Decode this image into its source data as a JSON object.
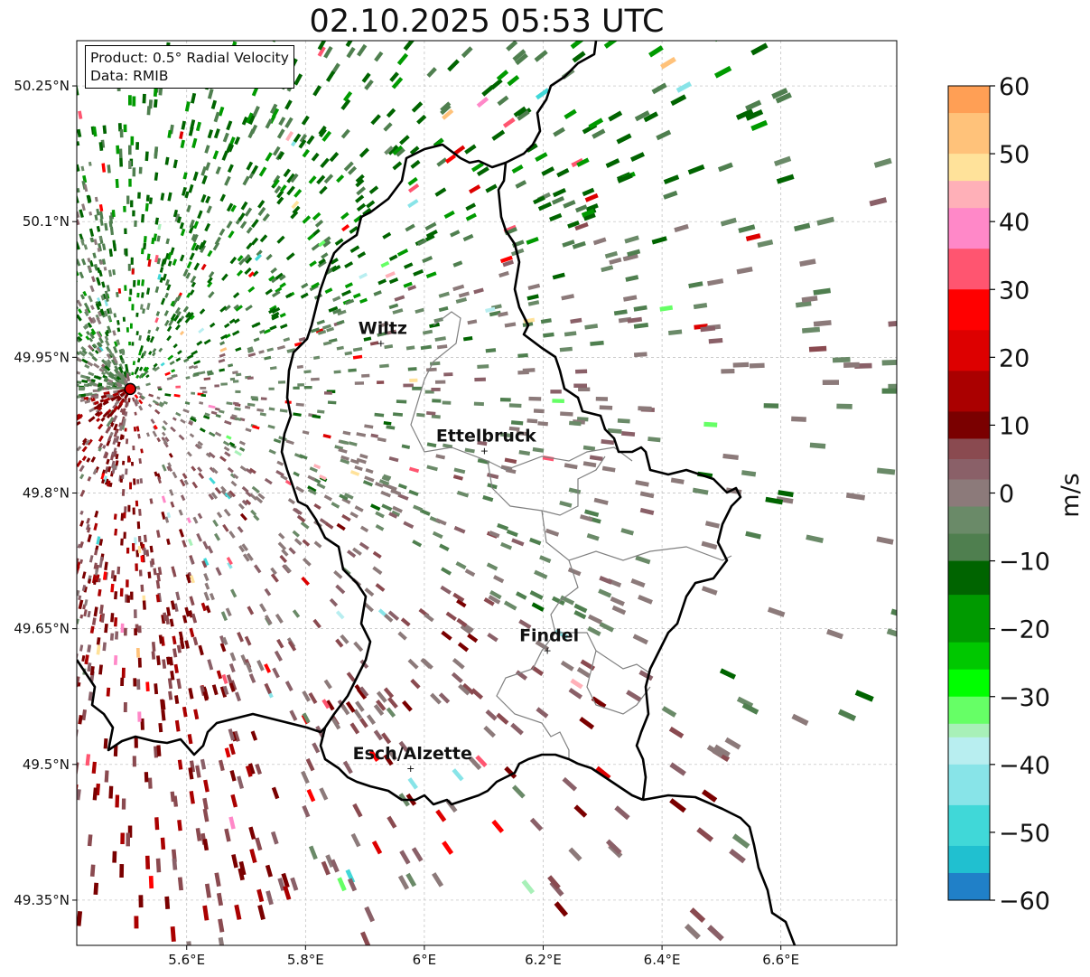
{
  "title": "02.10.2025 05:53 UTC",
  "info": {
    "product": "Product: 0.5° Radial Velocity",
    "source": "Data: RMIB"
  },
  "map": {
    "extent": {
      "lon_min": 5.415,
      "lon_max": 6.795,
      "lat_min": 49.3,
      "lat_max": 50.3
    },
    "x_ticks": [
      {
        "lon": 5.6,
        "label": "5.6°E"
      },
      {
        "lon": 5.8,
        "label": "5.8°E"
      },
      {
        "lon": 6.0,
        "label": "6°E"
      },
      {
        "lon": 6.2,
        "label": "6.2°E"
      },
      {
        "lon": 6.4,
        "label": "6.4°E"
      },
      {
        "lon": 6.6,
        "label": "6.6°E"
      }
    ],
    "y_ticks": [
      {
        "lat": 50.25,
        "label": "50.25°N"
      },
      {
        "lat": 50.1,
        "label": "50.1°N"
      },
      {
        "lat": 49.95,
        "label": "49.95°N"
      },
      {
        "lat": 49.8,
        "label": "49.8°N"
      },
      {
        "lat": 49.65,
        "label": "49.65°N"
      },
      {
        "lat": 49.5,
        "label": "49.5°N"
      },
      {
        "lat": 49.35,
        "label": "49.35°N"
      }
    ],
    "radar": {
      "lon": 5.505,
      "lat": 49.915
    },
    "cities": [
      {
        "name": "Wiltz",
        "lon": 5.93,
        "lat": 49.966
      },
      {
        "name": "Ettelbruck",
        "lon": 6.104,
        "lat": 49.847
      },
      {
        "name": "Findel",
        "lon": 6.21,
        "lat": 49.626
      },
      {
        "name": "Esch/Alzette",
        "lon": 5.98,
        "lat": 49.496
      }
    ],
    "colors": {
      "border": "#000000",
      "canton": "#808080",
      "radar_marker": "#e00000"
    }
  },
  "colorbar": {
    "unit": "m/s",
    "min": -60,
    "max": 60,
    "ticks": [
      {
        "value": 60,
        "label": "60"
      },
      {
        "value": 50,
        "label": "50"
      },
      {
        "value": 40,
        "label": "40"
      },
      {
        "value": 30,
        "label": "30"
      },
      {
        "value": 20,
        "label": "20"
      },
      {
        "value": 10,
        "label": "10"
      },
      {
        "value": 0,
        "label": "0"
      },
      {
        "value": -10,
        "label": "−10"
      },
      {
        "value": -20,
        "label": "−20"
      },
      {
        "value": -30,
        "label": "−30"
      },
      {
        "value": -40,
        "label": "−40"
      },
      {
        "value": -50,
        "label": "−50"
      },
      {
        "value": -60,
        "label": "−60"
      }
    ],
    "bands": [
      {
        "from": 56,
        "to": 60,
        "color": "#ff9f55"
      },
      {
        "from": 50,
        "to": 56,
        "color": "#ffc27a"
      },
      {
        "from": 46,
        "to": 50,
        "color": "#ffe29a"
      },
      {
        "from": 42,
        "to": 46,
        "color": "#ffb0b8"
      },
      {
        "from": 36,
        "to": 42,
        "color": "#ff88c8"
      },
      {
        "from": 30,
        "to": 36,
        "color": "#ff5570"
      },
      {
        "from": 24,
        "to": 30,
        "color": "#ff0000"
      },
      {
        "from": 18,
        "to": 24,
        "color": "#dd0000"
      },
      {
        "from": 12,
        "to": 18,
        "color": "#aa0000"
      },
      {
        "from": 8,
        "to": 12,
        "color": "#7a0000"
      },
      {
        "from": 5,
        "to": 8,
        "color": "#8a4a50"
      },
      {
        "from": 2,
        "to": 5,
        "color": "#8a6068"
      },
      {
        "from": -2,
        "to": 2,
        "color": "#8c7a7a"
      },
      {
        "from": -6,
        "to": -2,
        "color": "#6a8a68"
      },
      {
        "from": -10,
        "to": -6,
        "color": "#4f7f4f"
      },
      {
        "from": -15,
        "to": -10,
        "color": "#006400"
      },
      {
        "from": -22,
        "to": -15,
        "color": "#009a00"
      },
      {
        "from": -26,
        "to": -22,
        "color": "#00c800"
      },
      {
        "from": -30,
        "to": -26,
        "color": "#00ff00"
      },
      {
        "from": -34,
        "to": -30,
        "color": "#66ff66"
      },
      {
        "from": -36,
        "to": -34,
        "color": "#a8f0b8"
      },
      {
        "from": -40,
        "to": -36,
        "color": "#b8eef0"
      },
      {
        "from": -46,
        "to": -40,
        "color": "#88e4e8"
      },
      {
        "from": -52,
        "to": -46,
        "color": "#40d8d8"
      },
      {
        "from": -56,
        "to": -52,
        "color": "#20c0d0"
      },
      {
        "from": -60,
        "to": -56,
        "color": "#2080c8"
      }
    ]
  }
}
